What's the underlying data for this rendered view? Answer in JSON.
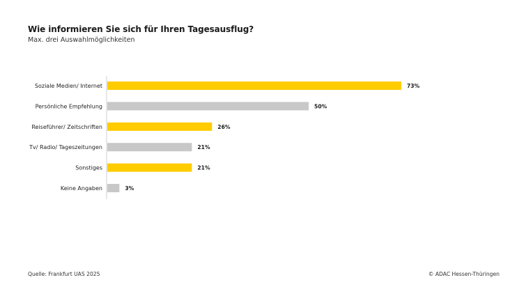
{
  "chart_data": {
    "type": "bar",
    "orientation": "horizontal",
    "title": "Wie informieren Sie sich für Ihren Tagesausflug?",
    "subtitle": "Max. drei Auswahlmöglichkeiten",
    "categories": [
      "Soziale Medien/ Internet",
      "Persönliche Empfehlung",
      "Reiseführer/ Zeitschriften",
      "Tv/ Radio/ Tageszeitungen",
      "Sonstiges",
      "Keine Angaben"
    ],
    "values": [
      73,
      50,
      26,
      21,
      21,
      3
    ],
    "value_labels": [
      "73%",
      "50%",
      "26%",
      "21%",
      "21%",
      "3%"
    ],
    "unit": "%",
    "xlim": [
      0,
      100
    ],
    "bar_colors": [
      "#ffcc00",
      "#c8c8c8",
      "#ffcc00",
      "#c8c8c8",
      "#ffcc00",
      "#c8c8c8"
    ],
    "xlabel": "",
    "ylabel": "",
    "grid": false
  },
  "footer": {
    "source": "Quelle: Frankfurt UAS 2025",
    "copyright": "© ADAC Hessen-Thüringen"
  }
}
